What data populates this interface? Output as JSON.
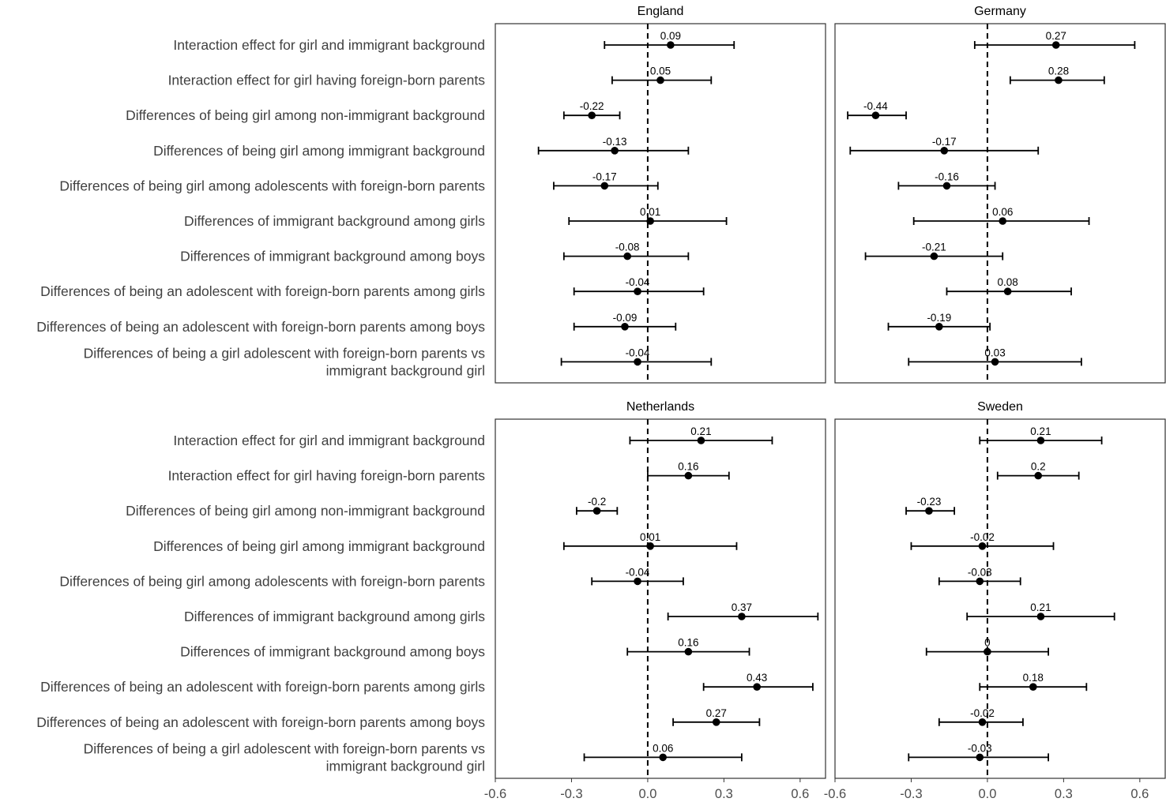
{
  "colors": {
    "background": "#ffffff",
    "ink": "#000000",
    "label": "#404040",
    "axis_text": "#4d4d4d",
    "panel_border": "#333333"
  },
  "chart_data": {
    "type": "scatter",
    "subtype": "forest plot with horizontal error bars",
    "layout": "2x2 facet grid",
    "xlim": [
      -0.6,
      0.7
    ],
    "x_ticks": [
      -0.6,
      -0.3,
      0.0,
      0.3,
      0.6
    ],
    "x_tick_labels": [
      "-0.6",
      "-0.3",
      "0.0",
      "0.3",
      "0.6"
    ],
    "reference_line": {
      "x": 0,
      "style": "dashed"
    },
    "grid": false,
    "categories": [
      "Interaction effect for girl and immigrant background",
      "Interaction effect for girl having foreign-born parents",
      "Differences of being girl among non-immigrant background",
      "Differences of being girl among immigrant background",
      "Differences of being girl among adolescents with foreign-born parents",
      "Differences of immigrant background among girls",
      "Differences of immigrant background among boys",
      "Differences of being an adolescent with foreign-born parents among girls",
      "Differences of being an adolescent with foreign-born parents among boys",
      [
        "Differences of being a girl adolescent with foreign-born parents vs",
        "immigrant background girl"
      ]
    ],
    "panels": [
      {
        "title": "England",
        "estimates": [
          0.09,
          0.05,
          -0.22,
          -0.13,
          -0.17,
          0.01,
          -0.08,
          -0.04,
          -0.09,
          -0.04
        ],
        "labels": [
          "0.09",
          "0.05",
          "-0.22",
          "-0.13",
          "-0.17",
          "0.01",
          "-0.08",
          "-0.04",
          "-0.09",
          "-0.04"
        ],
        "lower": [
          -0.17,
          -0.14,
          -0.33,
          -0.43,
          -0.37,
          -0.31,
          -0.33,
          -0.29,
          -0.29,
          -0.34
        ],
        "upper": [
          0.34,
          0.25,
          -0.11,
          0.16,
          0.04,
          0.31,
          0.16,
          0.22,
          0.11,
          0.25
        ]
      },
      {
        "title": "Germany",
        "estimates": [
          0.27,
          0.28,
          -0.44,
          -0.17,
          -0.16,
          0.06,
          -0.21,
          0.08,
          -0.19,
          0.03
        ],
        "labels": [
          "0.27",
          "0.28",
          "-0.44",
          "-0.17",
          "-0.16",
          "0.06",
          "-0.21",
          "0.08",
          "-0.19",
          "0.03"
        ],
        "lower": [
          -0.05,
          0.09,
          -0.55,
          -0.54,
          -0.35,
          -0.29,
          -0.48,
          -0.16,
          -0.39,
          -0.31
        ],
        "upper": [
          0.58,
          0.46,
          -0.32,
          0.2,
          0.03,
          0.4,
          0.06,
          0.33,
          0.01,
          0.37
        ]
      },
      {
        "title": "Netherlands",
        "estimates": [
          0.21,
          0.16,
          -0.2,
          0.01,
          -0.04,
          0.37,
          0.16,
          0.43,
          0.27,
          0.06
        ],
        "labels": [
          "0.21",
          "0.16",
          "-0.2",
          "0.01",
          "-0.04",
          "0.37",
          "0.16",
          "0.43",
          "0.27",
          "0.06"
        ],
        "lower": [
          -0.07,
          0.0,
          -0.28,
          -0.33,
          -0.22,
          0.08,
          -0.08,
          0.22,
          0.1,
          -0.25
        ],
        "upper": [
          0.49,
          0.32,
          -0.12,
          0.35,
          0.14,
          0.67,
          0.4,
          0.65,
          0.44,
          0.37
        ]
      },
      {
        "title": "Sweden",
        "estimates": [
          0.21,
          0.2,
          -0.23,
          -0.02,
          -0.03,
          0.21,
          0.0,
          0.18,
          -0.02,
          -0.03
        ],
        "labels": [
          "0.21",
          "0.2",
          "-0.23",
          "-0.02",
          "-0.03",
          "0.21",
          "0",
          "0.18",
          "-0.02",
          "-0.03"
        ],
        "lower": [
          -0.03,
          0.04,
          -0.32,
          -0.3,
          -0.19,
          -0.08,
          -0.24,
          -0.03,
          -0.19,
          -0.31
        ],
        "upper": [
          0.45,
          0.36,
          -0.13,
          0.26,
          0.13,
          0.5,
          0.24,
          0.39,
          0.14,
          0.24
        ]
      }
    ]
  }
}
